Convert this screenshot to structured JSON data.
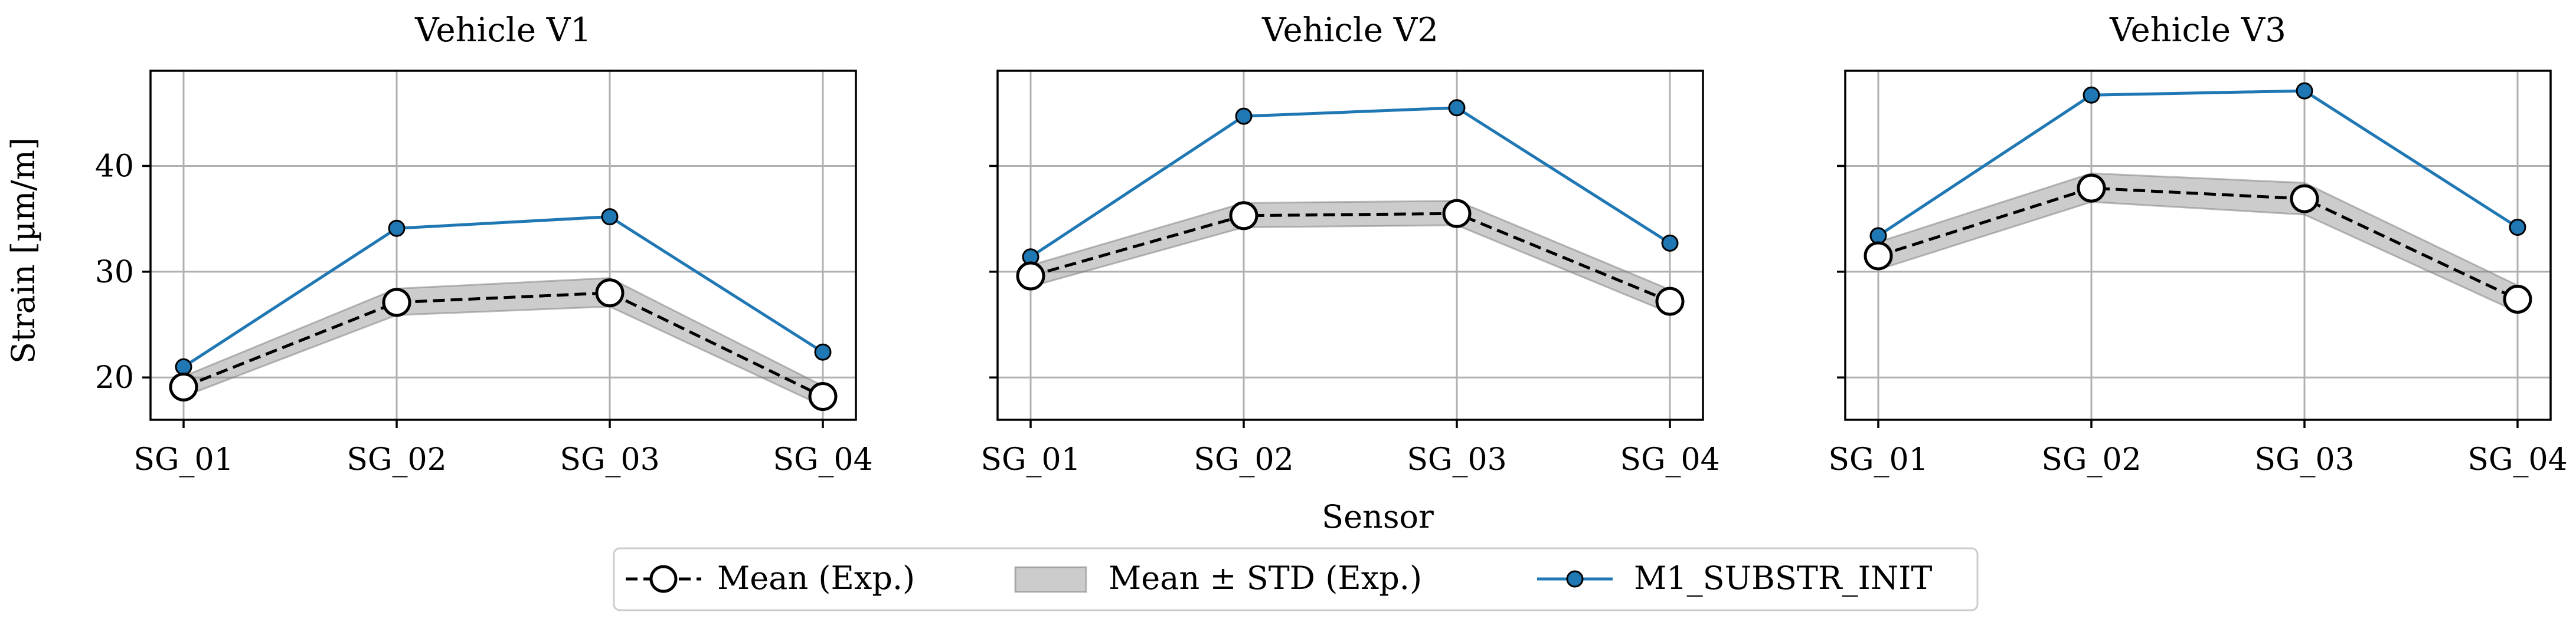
{
  "chart_data": [
    {
      "type": "line",
      "title": "Vehicle V1",
      "categories": [
        "SG_01",
        "SG_02",
        "SG_03",
        "SG_04"
      ],
      "series": [
        {
          "name": "Mean (Exp.)",
          "values": [
            19.1,
            27.1,
            28.0,
            18.2
          ]
        },
        {
          "name": "Mean ± STD (Exp.) lower",
          "values": [
            18.2,
            25.9,
            26.7,
            17.3
          ]
        },
        {
          "name": "Mean ± STD (Exp.) upper",
          "values": [
            20.1,
            28.4,
            29.4,
            19.2
          ]
        },
        {
          "name": "M1_SUBSTR_INIT",
          "values": [
            21.0,
            34.1,
            35.2,
            22.4
          ]
        }
      ],
      "xlabel": "",
      "ylabel": "Strain [µm/m]",
      "ylim": [
        16,
        49
      ]
    },
    {
      "type": "line",
      "title": "Vehicle V2",
      "categories": [
        "SG_01",
        "SG_02",
        "SG_03",
        "SG_04"
      ],
      "series": [
        {
          "name": "Mean (Exp.)",
          "values": [
            29.6,
            35.3,
            35.5,
            27.2
          ]
        },
        {
          "name": "Mean ± STD (Exp.) lower",
          "values": [
            28.6,
            34.2,
            34.4,
            26.1
          ]
        },
        {
          "name": "Mean ± STD (Exp.) upper",
          "values": [
            30.6,
            36.5,
            36.7,
            28.3
          ]
        },
        {
          "name": "M1_SUBSTR_INIT",
          "values": [
            31.4,
            44.7,
            45.5,
            32.7
          ]
        }
      ],
      "xlabel": "Sensor",
      "ylabel": "",
      "ylim": [
        16,
        49
      ]
    },
    {
      "type": "line",
      "title": "Vehicle V3",
      "categories": [
        "SG_01",
        "SG_02",
        "SG_03",
        "SG_04"
      ],
      "series": [
        {
          "name": "Mean (Exp.)",
          "values": [
            31.5,
            37.9,
            36.9,
            27.4
          ]
        },
        {
          "name": "Mean ± STD (Exp.) lower",
          "values": [
            30.2,
            36.6,
            35.4,
            26.2
          ]
        },
        {
          "name": "Mean ± STD (Exp.) upper",
          "values": [
            32.8,
            39.3,
            38.4,
            28.7
          ]
        },
        {
          "name": "M1_SUBSTR_INIT",
          "values": [
            33.4,
            46.7,
            47.1,
            34.2
          ]
        }
      ],
      "xlabel": "",
      "ylabel": "",
      "ylim": [
        16,
        49
      ]
    }
  ],
  "y_ticks": [
    20,
    30,
    40
  ],
  "shared_xlabel": "Sensor",
  "shared_ylabel": "Strain [µm/m]",
  "legend": {
    "placement": "bottom-center",
    "entries": [
      "Mean (Exp.)",
      "Mean ± STD (Exp.)",
      "M1_SUBSTR_INIT"
    ]
  },
  "colors": {
    "model": "#1f77b4",
    "band": "#808080",
    "mean": "#000000",
    "grid": "#b0b0b0"
  }
}
